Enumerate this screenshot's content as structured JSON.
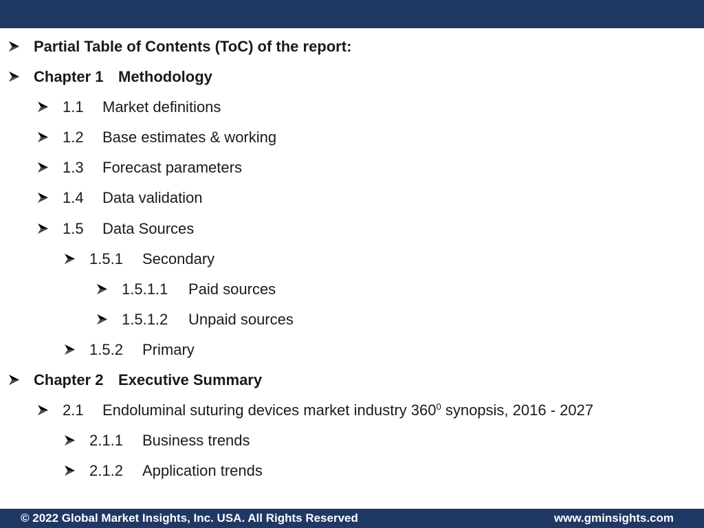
{
  "heading": "Partial Table of Contents (ToC) of the report:",
  "chapter1": {
    "number": "Chapter 1",
    "title": "Methodology",
    "items": [
      {
        "number": "1.1",
        "title": "Market definitions"
      },
      {
        "number": "1.2",
        "title": "Base estimates & working"
      },
      {
        "number": "1.3",
        "title": "Forecast parameters"
      },
      {
        "number": "1.4",
        "title": "Data validation"
      },
      {
        "number": "1.5",
        "title": "Data Sources"
      }
    ],
    "secondary": {
      "number": "1.5.1",
      "title": "Secondary"
    },
    "secondary_items": [
      {
        "number": "1.5.1.1",
        "title": "Paid sources"
      },
      {
        "number": "1.5.1.2",
        "title": "Unpaid sources"
      }
    ],
    "primary": {
      "number": "1.5.2",
      "title": "Primary"
    }
  },
  "chapter2": {
    "number": "Chapter 2",
    "title": "Executive Summary",
    "synopsis": {
      "number": "2.1",
      "title_before": "Endoluminal suturing devices market industry 360",
      "superscript": "0",
      "title_after": " synopsis, 2016 - 2027"
    },
    "items": [
      {
        "number": "2.1.1",
        "title": "Business trends"
      },
      {
        "number": "2.1.2",
        "title": "Application trends"
      }
    ]
  },
  "footer": {
    "copyright": "© 2022 Global Market Insights, Inc. USA. All Rights Reserved",
    "website": "www.gminsights.com"
  },
  "colors": {
    "bar": "#1f3864",
    "bullet": "#000000"
  },
  "icons": {
    "bullet": "arrow-bullet-icon"
  }
}
